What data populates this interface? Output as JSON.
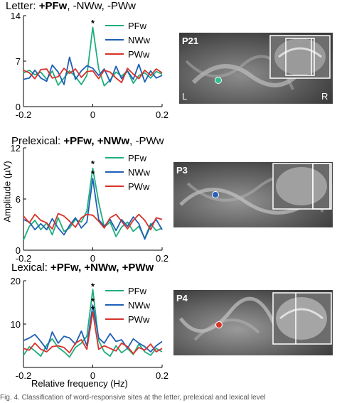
{
  "panels": [
    {
      "title_prefix": "Letter: ",
      "title_parts": [
        {
          "text": "+PFw",
          "bold": true
        },
        {
          "text": ", -NWw",
          "bold": false
        },
        {
          "text": ", -PWw",
          "bold": false
        }
      ],
      "subject": "P21",
      "side_left": "L",
      "side_right": "R",
      "dot_color": "#2ebf8f"
    },
    {
      "title_prefix": "Prelexical: ",
      "title_parts": [
        {
          "text": "+PFw",
          "bold": true
        },
        {
          "text": ", +NWw",
          "bold": true
        },
        {
          "text": ", -PWw",
          "bold": false
        }
      ],
      "subject": "P3",
      "dot_color": "#2a5fb8"
    },
    {
      "title_prefix": "Lexical: ",
      "title_parts": [
        {
          "text": "+PFw",
          "bold": true
        },
        {
          "text": ", +NWw",
          "bold": true
        },
        {
          "text": ", +PWw",
          "bold": true
        }
      ],
      "subject": "P4",
      "dot_color": "#d9362b"
    }
  ],
  "colors": {
    "PFw": "#1fae7e",
    "NWw": "#1f5fb5",
    "PWw": "#d8322a"
  },
  "ylabel": "Amplitude (µV)",
  "xlabel": "Relative frequency (Hz)",
  "caption": "Fig. 4. Classification of word-responsive sites at the letter, prelexical and lexical level",
  "chart_data": [
    {
      "type": "line",
      "title": "Letter: +PFw, -NWw, -PWw",
      "xlim": [
        -0.2,
        0.2
      ],
      "ylim": [
        0,
        14
      ],
      "yticks": [
        0,
        7,
        14
      ],
      "xticks": [
        -0.2,
        0,
        0.2
      ],
      "xtick_labels": [
        "-0.2",
        "0",
        "0.2"
      ],
      "legend": "top-right",
      "annotations": [
        {
          "x": 0,
          "y": 12.8,
          "text": "*"
        }
      ],
      "x": [
        -0.2,
        -0.183,
        -0.167,
        -0.15,
        -0.133,
        -0.117,
        -0.1,
        -0.083,
        -0.067,
        -0.05,
        -0.033,
        -0.017,
        0,
        0.017,
        0.033,
        0.05,
        0.067,
        0.083,
        0.1,
        0.117,
        0.133,
        0.15,
        0.167,
        0.183,
        0.2
      ],
      "series": [
        {
          "name": "PFw",
          "values": [
            5.2,
            5.6,
            4.9,
            5.3,
            4.2,
            5.5,
            3.3,
            4.4,
            5.5,
            4.6,
            3.4,
            4.8,
            12.2,
            5.8,
            3.2,
            4.1,
            5.3,
            4.7,
            5.5,
            3.6,
            4.8,
            5.2,
            4.4,
            5.4,
            5.0
          ]
        },
        {
          "name": "NWw",
          "values": [
            4.2,
            4.4,
            5.6,
            4.4,
            3.9,
            6.4,
            5.3,
            3.4,
            7.6,
            4.2,
            5.5,
            6.3,
            5.9,
            4.8,
            5.8,
            3.8,
            6.2,
            4.3,
            5.5,
            4.2,
            6.5,
            3.8,
            5.5,
            4.4,
            4.8
          ]
        },
        {
          "name": "PWw",
          "values": [
            5.6,
            5.2,
            4.3,
            5.7,
            5.8,
            4.4,
            4.6,
            5.9,
            5.1,
            5.8,
            4.5,
            5.4,
            5.5,
            4.3,
            5.6,
            5.3,
            4.4,
            3.7,
            5.9,
            5.0,
            4.3,
            5.6,
            4.8,
            5.8,
            5.2
          ]
        }
      ]
    },
    {
      "type": "line",
      "title": "Prelexical: +PFw, +NWw, -PWw",
      "xlim": [
        -0.2,
        0.2
      ],
      "ylim": [
        0,
        12
      ],
      "yticks": [
        0,
        6,
        12
      ],
      "xticks": [
        -0.2,
        0,
        0.2
      ],
      "xtick_labels": [
        "-0.2",
        "0",
        "0.2"
      ],
      "legend": "top-right",
      "annotations": [
        {
          "x": 0,
          "y": 10.1,
          "text": "*"
        },
        {
          "x": 0,
          "y": 8.9,
          "text": "*"
        }
      ],
      "x": [
        -0.2,
        -0.183,
        -0.167,
        -0.15,
        -0.133,
        -0.117,
        -0.1,
        -0.083,
        -0.067,
        -0.05,
        -0.033,
        -0.017,
        0,
        0.017,
        0.033,
        0.05,
        0.067,
        0.083,
        0.1,
        0.117,
        0.133,
        0.15,
        0.167,
        0.183,
        0.2
      ],
      "series": [
        {
          "name": "PFw",
          "values": [
            1.2,
            2.8,
            3.5,
            2.4,
            3.2,
            1.8,
            3.8,
            2.2,
            2.6,
            3.6,
            3.3,
            4.6,
            9.6,
            5.6,
            2.7,
            3.3,
            1.6,
            2.7,
            3.3,
            2.2,
            2.8,
            1.4,
            3.1,
            2.3,
            2.6
          ]
        },
        {
          "name": "NWw",
          "values": [
            3.6,
            3.3,
            2.4,
            3.1,
            2.4,
            3.7,
            2.6,
            1.8,
            2.9,
            3.8,
            2.6,
            3.3,
            8.4,
            3.6,
            2.8,
            3.6,
            2.3,
            3.6,
            2.8,
            3.9,
            3.1,
            1.3,
            2.9,
            3.6,
            2.4
          ]
        },
        {
          "name": "PWw",
          "values": [
            4.0,
            3.2,
            4.2,
            3.5,
            3.2,
            2.5,
            4.3,
            4.0,
            3.4,
            2.7,
            3.8,
            4.2,
            4.1,
            3.4,
            2.6,
            3.8,
            4.2,
            3.4,
            2.5,
            3.5,
            4.2,
            3.5,
            2.4,
            3.8,
            3.6
          ]
        }
      ]
    },
    {
      "type": "line",
      "title": "Lexical: +PFw, +NWw, +PWw",
      "xlim": [
        -0.2,
        0.2
      ],
      "ylim": [
        0,
        20
      ],
      "yticks": [
        10,
        20
      ],
      "xticks": [
        -0.2,
        0,
        0.2
      ],
      "xtick_labels": [
        "-0.2",
        "0",
        "0.2"
      ],
      "legend": "top-right",
      "annotations": [
        {
          "x": 0,
          "y": 18.6,
          "text": "*"
        },
        {
          "x": 0,
          "y": 15.2,
          "text": "*"
        },
        {
          "x": 0,
          "y": 13.4,
          "text": "*"
        }
      ],
      "x": [
        -0.2,
        -0.183,
        -0.167,
        -0.15,
        -0.133,
        -0.117,
        -0.1,
        -0.083,
        -0.067,
        -0.05,
        -0.033,
        -0.017,
        0,
        0.017,
        0.033,
        0.05,
        0.067,
        0.083,
        0.1,
        0.117,
        0.133,
        0.15,
        0.167,
        0.183,
        0.2
      ],
      "series": [
        {
          "name": "PFw",
          "values": [
            2.8,
            4.8,
            3.8,
            2.6,
            5.2,
            6.6,
            4.6,
            3.6,
            2.4,
            4.6,
            5.6,
            7.2,
            18.0,
            6.2,
            3.6,
            2.6,
            5.0,
            3.4,
            4.4,
            3.0,
            5.4,
            3.6,
            2.8,
            4.4,
            3.6
          ]
        },
        {
          "name": "NWw",
          "values": [
            6.2,
            6.8,
            7.6,
            6.0,
            4.2,
            8.2,
            5.6,
            7.2,
            6.8,
            5.4,
            8.4,
            5.0,
            14.4,
            6.8,
            5.6,
            7.8,
            6.0,
            6.4,
            4.4,
            6.6,
            5.6,
            4.8,
            3.6,
            5.0,
            6.0
          ]
        },
        {
          "name": "PWw",
          "values": [
            4.4,
            4.0,
            5.6,
            4.2,
            3.6,
            4.8,
            5.0,
            4.6,
            3.4,
            5.6,
            6.4,
            4.2,
            12.8,
            4.2,
            5.0,
            4.4,
            3.8,
            5.6,
            4.8,
            3.2,
            4.6,
            4.0,
            5.4,
            3.6,
            4.4
          ]
        }
      ]
    }
  ]
}
